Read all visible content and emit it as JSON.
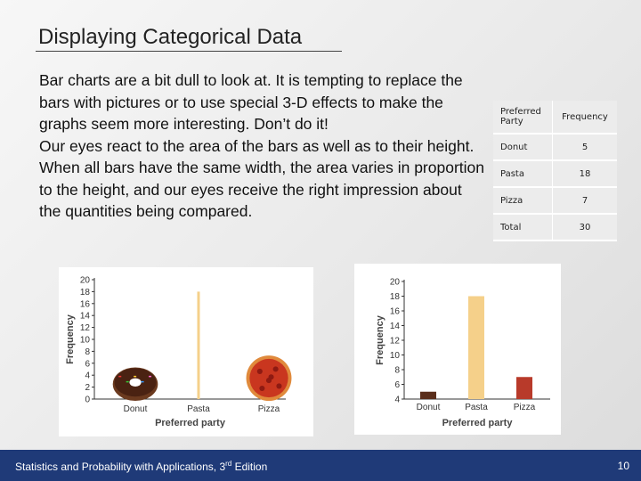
{
  "slide": {
    "title": "Displaying Categorical Data",
    "paragraph1": "Bar charts are a bit dull to look at. It is tempting to replace the bars with pictures or to use special 3-D effects to make the graphs seem more interesting. Don’t do it!",
    "paragraph2": "Our eyes react to the area of the bars as well as to their height. When all bars have the same width, the area varies in proportion to the height, and our eyes receive the right impression about the quantities being compared."
  },
  "table": {
    "header": [
      "Preferred Party",
      "Frequency"
    ],
    "rows": [
      {
        "party": "Donut",
        "freq": "5"
      },
      {
        "party": "Pasta",
        "freq": "18"
      },
      {
        "party": "Pizza",
        "freq": "7"
      },
      {
        "party": "Total",
        "freq": "30"
      }
    ]
  },
  "chart_data": [
    {
      "type": "bar",
      "note": "pictograph",
      "categories": [
        "Donut",
        "Pasta",
        "Pizza"
      ],
      "values": [
        5,
        18,
        7
      ],
      "xlabel": "Preferred party",
      "ylabel": "Frequency",
      "ylim": [
        0,
        20
      ],
      "yticks": [
        0,
        2,
        4,
        6,
        8,
        10,
        12,
        14,
        16,
        18,
        20
      ],
      "colors": [
        "#5a2e1b",
        "#f5d08a",
        "#b83a2a"
      ]
    },
    {
      "type": "bar",
      "categories": [
        "Donut",
        "Pasta",
        "Pizza"
      ],
      "values": [
        5,
        18,
        7
      ],
      "xlabel": "Preferred party",
      "ylabel": "Frequency",
      "ylim": [
        4,
        20
      ],
      "yticks": [
        4,
        6,
        8,
        10,
        12,
        14,
        16,
        18,
        20
      ],
      "colors": [
        "#5a2e1b",
        "#f5d08a",
        "#b83a2a"
      ]
    }
  ],
  "footer": {
    "text_pre": "Statistics and Probability with Applications, 3",
    "text_sup": "rd",
    "text_post": " Edition",
    "page": "10"
  }
}
